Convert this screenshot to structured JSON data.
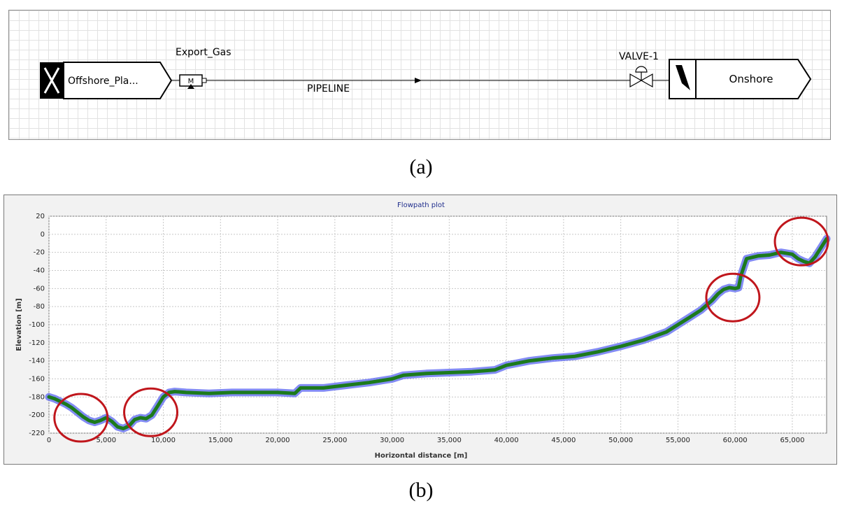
{
  "panel_a": {
    "source_label": "Offshore_Pla...",
    "source_icon": "x-icon",
    "meter_label": "M",
    "export_label": "Export_Gas",
    "pipeline_label": "PIPELINE",
    "valve_label": "VALVE-1",
    "sink_label": "Onshore",
    "sink_icon": "triangle-flag-icon"
  },
  "captions": {
    "a": "(a)",
    "b": "(b)"
  },
  "chart_data": {
    "type": "line",
    "title": "Flowpath plot",
    "xlabel": "Horizontal distance [m]",
    "ylabel": "Elevation [m]",
    "xlim": [
      0,
      68000
    ],
    "ylim": [
      -220,
      20
    ],
    "xticks": [
      0,
      5000,
      10000,
      15000,
      20000,
      25000,
      30000,
      35000,
      40000,
      45000,
      50000,
      55000,
      60000,
      65000
    ],
    "xtick_labels": [
      "0",
      "5,000",
      "10,000",
      "15,000",
      "20,000",
      "25,000",
      "30,000",
      "35,000",
      "40,000",
      "45,000",
      "50,000",
      "55,000",
      "60,000",
      "65,000"
    ],
    "yticks": [
      20,
      0,
      -20,
      -40,
      -60,
      -80,
      -100,
      -120,
      -140,
      -160,
      -180,
      -200,
      -220
    ],
    "ytick_labels": [
      "20",
      "0",
      "-20",
      "-40",
      "-60",
      "-80",
      "-100",
      "-120",
      "-140",
      "-160",
      "-180",
      "-200",
      "-220"
    ],
    "grid": true,
    "series": [
      {
        "x": [
          0,
          500,
          1000,
          1500,
          2000,
          2500,
          3000,
          3500,
          4000,
          4500,
          5000,
          5500,
          6000,
          6500,
          7000,
          7500,
          8000,
          8500,
          9000,
          9500,
          10000,
          10500,
          11000,
          12000,
          14000,
          16000,
          18000,
          20000,
          21500,
          22000,
          24000,
          26000,
          28000,
          30000,
          31000,
          33000,
          35000,
          37000,
          39000,
          40000,
          42000,
          44000,
          46000,
          48000,
          50000,
          52000,
          54000,
          55000,
          56000,
          57000,
          58000,
          58500,
          59000,
          59500,
          60000,
          60300,
          60500,
          61000,
          62000,
          63000,
          64000,
          65000,
          65500,
          66000,
          66500,
          67000,
          67500,
          68000
        ],
        "values": [
          -180,
          -182,
          -185,
          -188,
          -192,
          -197,
          -202,
          -206,
          -208,
          -206,
          -203,
          -207,
          -213,
          -215,
          -212,
          -205,
          -203,
          -204,
          -200,
          -190,
          -180,
          -175,
          -174,
          -175,
          -176,
          -175,
          -175,
          -175,
          -176,
          -170,
          -170,
          -167,
          -164,
          -160,
          -156,
          -154,
          -153,
          -152,
          -150,
          -145,
          -140,
          -137,
          -135,
          -130,
          -124,
          -117,
          -108,
          -100,
          -92,
          -84,
          -73,
          -66,
          -61,
          -59,
          -60,
          -59,
          -46,
          -27,
          -24,
          -23,
          -20,
          -22,
          -27,
          -30,
          -32,
          -25,
          -15,
          -5
        ]
      }
    ],
    "markers_note": "",
    "highlight_circles": [
      {
        "x": 2800,
        "y": -203
      },
      {
        "x": 8900,
        "y": -197
      },
      {
        "x": 59800,
        "y": -70
      },
      {
        "x": 65800,
        "y": -8
      }
    ],
    "colors": {
      "line": "#1c7a1c",
      "band": "#5a66f0",
      "circle": "#c0161c",
      "title": "#1f2d8c"
    }
  }
}
